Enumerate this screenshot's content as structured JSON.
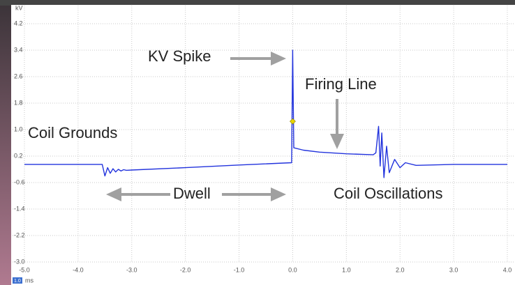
{
  "chart_data": {
    "type": "line",
    "y_label": "kV",
    "x_label": "ms",
    "timebase": "1.0",
    "x": [
      -5.0,
      -3.55,
      -3.5,
      -3.45,
      -3.4,
      -3.35,
      -3.3,
      -3.25,
      -3.2,
      -3.15,
      -3.1,
      -3.0,
      -2.0,
      -1.0,
      -0.02,
      0.0,
      0.02,
      0.2,
      0.5,
      1.0,
      1.5,
      1.55,
      1.6,
      1.63,
      1.66,
      1.7,
      1.75,
      1.8,
      1.9,
      2.0,
      2.1,
      2.3,
      3.0,
      4.0
    ],
    "series": [
      {
        "color": "#2233dd",
        "values": [
          -0.05,
          -0.05,
          -0.4,
          -0.15,
          -0.32,
          -0.18,
          -0.28,
          -0.2,
          -0.25,
          -0.21,
          -0.23,
          -0.22,
          -0.15,
          -0.07,
          0.0,
          3.4,
          0.45,
          0.38,
          0.32,
          0.27,
          0.24,
          0.3,
          1.1,
          -0.1,
          0.9,
          -0.45,
          0.5,
          -0.3,
          0.1,
          -0.15,
          0.0,
          -0.08,
          -0.05,
          -0.05
        ]
      }
    ],
    "trigger": {
      "x": 0.0,
      "y": 1.25,
      "color": "#e8d400"
    },
    "xlim": [
      -5.0,
      4.0
    ],
    "ylim": [
      -3.0,
      4.66
    ],
    "xticks": [
      {
        "value": -5,
        "label": "-5.0"
      },
      {
        "value": -4,
        "label": "-4.0"
      },
      {
        "value": -3,
        "label": "-3.0"
      },
      {
        "value": -2,
        "label": "-2.0"
      },
      {
        "value": -1,
        "label": "-1.0"
      },
      {
        "value": 0,
        "label": "0.0"
      },
      {
        "value": 1,
        "label": "1.0"
      },
      {
        "value": 2,
        "label": "2.0"
      },
      {
        "value": 3,
        "label": "3.0"
      },
      {
        "value": 4,
        "label": "4.0"
      }
    ],
    "yticks": [
      {
        "value": -3,
        "label": "-3.0"
      },
      -2.2,
      -1.4,
      -0.6,
      0.2,
      {
        "value": 1,
        "label": "1.0"
      },
      1.8,
      2.6,
      3.4,
      4.2
    ],
    "grid": true,
    "annotations": [
      "KV Spike",
      "Firing Line",
      "Coil Grounds",
      "Dwell",
      "Coil Oscillations"
    ]
  }
}
